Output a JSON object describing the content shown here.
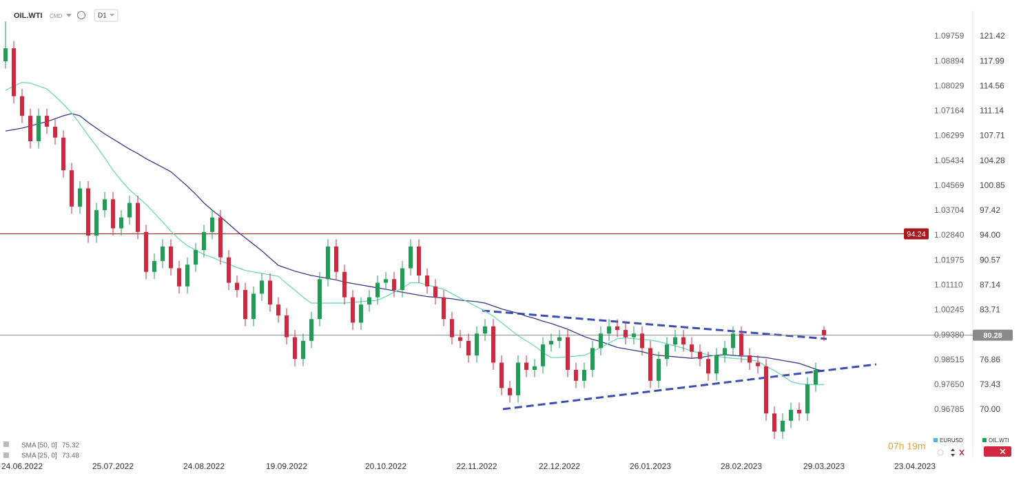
{
  "header": {
    "symbol": "OIL.WTI",
    "asset_class": "CMD",
    "timeframe": "D1"
  },
  "chart_data": {
    "type": "candlestick",
    "categories": [
      null,
      null,
      "24.06.2022",
      null,
      null,
      null,
      null,
      null,
      null,
      null,
      null,
      null,
      null,
      "25.07.2022",
      null,
      null,
      null,
      null,
      null,
      null,
      null,
      null,
      null,
      null,
      "24.08.2022",
      null,
      null,
      null,
      null,
      null,
      null,
      null,
      null,
      null,
      "19.09.2022",
      null,
      null,
      null,
      null,
      null,
      null,
      null,
      null,
      null,
      null,
      null,
      "20.10.2022",
      null,
      null,
      null,
      null,
      null,
      null,
      null,
      null,
      null,
      null,
      "22.11.2022",
      null,
      null,
      null,
      null,
      null,
      null,
      null,
      null,
      null,
      "22.12.2022",
      null,
      null,
      null,
      null,
      null,
      null,
      null,
      null,
      null,
      null,
      "26.01.2023",
      null,
      null,
      null,
      null,
      null,
      null,
      null,
      null,
      null,
      null,
      "28.02.2023",
      null,
      null,
      null,
      null,
      null,
      null,
      null,
      null,
      null,
      "29.03.2023",
      null,
      null,
      null,
      null,
      null,
      null,
      null,
      null,
      null,
      null,
      "23.04.2023"
    ],
    "open": [
      118.0,
      119.8,
      113.2,
      110.5,
      107.0,
      110.5,
      109.0,
      107.5,
      103.0,
      98.0,
      100.5,
      94.0,
      97.5,
      99.0,
      95.0,
      96.5,
      98.5,
      94.5,
      89.0,
      90.5,
      92.5,
      89.5,
      87.0,
      90.0,
      92.0,
      94.5,
      96.5,
      91.0,
      87.5,
      86.5,
      82.5,
      86.0,
      87.8,
      84.5,
      83.0,
      80.0,
      77.0,
      79.5,
      82.5,
      88.0,
      92.5,
      89.0,
      85.5,
      82.0,
      84.5,
      85.5,
      87.5,
      88.0,
      86.5,
      89.5,
      92.5,
      88.5,
      87.0,
      85.5,
      82.5,
      80.0,
      79.5,
      77.5,
      80.5,
      81.5,
      76.5,
      73.0,
      72.0,
      76.5,
      75.5,
      76.0,
      79.0,
      79.5,
      80.0,
      75.5,
      74.0,
      75.5,
      78.5,
      80.5,
      81.5,
      81.0,
      80.0,
      80.5,
      78.5,
      74.0,
      77.0,
      79.0,
      80.0,
      79.0,
      78.0,
      77.0,
      75.0,
      77.5,
      78.5,
      80.5,
      77.5,
      76.5,
      76.0,
      69.5,
      67.0,
      68.5,
      70.0,
      69.5,
      73.5,
      81.0,
      null,
      null,
      null,
      null,
      null,
      null,
      null,
      null,
      null,
      null,
      null
    ],
    "high": [
      123.5,
      120.8,
      114.2,
      111.5,
      111.5,
      111.5,
      110.0,
      108.5,
      104.0,
      101.5,
      101.5,
      98.5,
      100.0,
      100.0,
      97.5,
      99.5,
      99.5,
      95.5,
      91.5,
      93.5,
      93.5,
      90.5,
      91.0,
      93.0,
      95.5,
      97.5,
      97.5,
      92.0,
      88.5,
      87.5,
      87.0,
      88.8,
      88.8,
      85.5,
      84.0,
      81.0,
      80.5,
      83.5,
      89.0,
      93.5,
      93.5,
      90.0,
      86.5,
      85.5,
      86.5,
      88.5,
      89.0,
      89.0,
      90.5,
      93.5,
      93.5,
      89.5,
      88.0,
      86.5,
      83.5,
      81.0,
      80.5,
      81.5,
      82.5,
      82.5,
      77.5,
      74.0,
      77.5,
      77.5,
      77.0,
      80.0,
      80.5,
      81.0,
      81.0,
      76.5,
      76.5,
      79.5,
      81.5,
      82.5,
      82.5,
      82.0,
      81.5,
      81.5,
      79.5,
      78.0,
      80.0,
      81.0,
      81.0,
      80.0,
      79.0,
      78.0,
      78.5,
      79.5,
      81.5,
      81.5,
      78.5,
      77.5,
      77.0,
      70.5,
      69.5,
      71.0,
      71.0,
      74.5,
      76.5,
      81.5,
      null,
      null,
      null,
      null,
      null,
      null,
      null,
      null,
      null,
      null,
      null
    ],
    "low": [
      117.0,
      112.2,
      109.5,
      106.0,
      106.0,
      108.0,
      106.5,
      102.0,
      97.0,
      97.0,
      93.0,
      93.0,
      96.5,
      94.0,
      94.0,
      95.5,
      93.5,
      88.0,
      88.0,
      89.5,
      88.5,
      86.0,
      86.0,
      89.0,
      91.0,
      93.5,
      90.0,
      86.5,
      85.5,
      81.5,
      81.5,
      85.0,
      83.5,
      82.0,
      79.0,
      76.0,
      76.0,
      78.5,
      81.5,
      87.0,
      88.0,
      84.5,
      81.0,
      81.0,
      83.5,
      84.5,
      86.5,
      85.5,
      85.5,
      88.5,
      87.5,
      86.0,
      84.5,
      81.5,
      79.0,
      78.5,
      76.5,
      76.5,
      79.5,
      75.5,
      72.0,
      71.0,
      71.0,
      74.5,
      74.5,
      75.0,
      78.0,
      78.5,
      74.5,
      73.0,
      73.0,
      74.5,
      77.5,
      79.5,
      80.0,
      79.0,
      79.0,
      77.5,
      73.0,
      73.0,
      76.0,
      78.0,
      78.0,
      77.0,
      76.0,
      74.0,
      74.0,
      76.5,
      77.5,
      76.5,
      75.5,
      75.0,
      68.5,
      66.0,
      66.0,
      67.5,
      68.5,
      68.5,
      72.5,
      79.5,
      null,
      null,
      null,
      null,
      null,
      null,
      null,
      null,
      null,
      null,
      null
    ],
    "close": [
      119.8,
      113.2,
      110.5,
      107.0,
      110.5,
      109.0,
      107.5,
      103.0,
      98.0,
      100.5,
      94.0,
      97.5,
      99.0,
      95.0,
      96.5,
      98.5,
      94.5,
      89.0,
      90.5,
      92.5,
      89.5,
      87.0,
      90.0,
      92.0,
      94.5,
      96.5,
      91.0,
      87.5,
      86.5,
      82.5,
      86.0,
      87.8,
      84.5,
      83.0,
      80.0,
      77.0,
      79.5,
      82.5,
      88.0,
      92.5,
      89.0,
      85.5,
      82.0,
      84.5,
      85.5,
      87.5,
      88.0,
      86.5,
      89.5,
      92.5,
      88.5,
      87.0,
      85.5,
      82.5,
      80.0,
      79.5,
      77.5,
      80.5,
      81.5,
      76.5,
      73.0,
      72.0,
      76.5,
      75.5,
      76.0,
      79.0,
      79.5,
      80.0,
      75.5,
      74.0,
      75.5,
      78.5,
      80.5,
      81.5,
      81.0,
      80.0,
      80.5,
      78.5,
      74.0,
      77.0,
      79.0,
      80.0,
      79.0,
      78.0,
      77.0,
      75.0,
      77.5,
      78.5,
      80.5,
      77.5,
      76.5,
      76.0,
      69.5,
      67.0,
      68.5,
      70.0,
      69.5,
      73.5,
      75.5,
      80.28,
      null,
      null,
      null,
      null,
      null,
      null,
      null,
      null,
      null,
      null,
      null
    ],
    "up_color": "#1f9d55",
    "down_color": "#d0283f",
    "series": [
      {
        "name": "SMA [50, 0]",
        "last_value": 75.32,
        "color": "#343a8c",
        "values": [
          108.4,
          108.6,
          108.8,
          109.1,
          109.4,
          109.7,
          110.1,
          110.5,
          110.8,
          110.5,
          109.6,
          108.8,
          108.0,
          107.3,
          106.6,
          105.9,
          105.3,
          104.6,
          104.0,
          103.4,
          102.8,
          101.8,
          100.8,
          99.7,
          98.5,
          97.5,
          96.6,
          95.6,
          94.6,
          93.7,
          92.8,
          91.9,
          90.9,
          89.9,
          89.5,
          89.1,
          88.8,
          88.5,
          88.3,
          88.1,
          87.9,
          87.6,
          87.4,
          87.2,
          87.0,
          86.8,
          86.6,
          86.4,
          86.2,
          86.0,
          85.8,
          85.6,
          85.5,
          85.4,
          85.3,
          85.1,
          85.0,
          84.9,
          84.7,
          84.3,
          83.9,
          83.6,
          83.3,
          82.9,
          82.6,
          82.2,
          81.9,
          81.5,
          81.1,
          80.6,
          80.1,
          79.7,
          79.4,
          79.0,
          78.6,
          78.4,
          78.2,
          78.0,
          77.7,
          77.5,
          77.4,
          77.3,
          77.2,
          77.1,
          77.2,
          77.4,
          77.5,
          77.6,
          77.5,
          77.4,
          77.4,
          77.3,
          77.2,
          77.0,
          76.8,
          76.6,
          76.4,
          76.0,
          75.6,
          75.32,
          null,
          null,
          null,
          null,
          null,
          null,
          null,
          null,
          null,
          null,
          null
        ]
      },
      {
        "name": "SMA [25, 0]",
        "last_value": 73.48,
        "color": "#6fd6b4",
        "values": [
          114.0,
          114.6,
          115.1,
          115.0,
          114.6,
          114.2,
          113.2,
          112.1,
          110.9,
          109.4,
          107.8,
          106.3,
          104.7,
          103.0,
          101.6,
          100.3,
          99.3,
          98.3,
          97.1,
          95.9,
          94.6,
          93.5,
          92.6,
          92.0,
          91.4,
          91.0,
          90.5,
          90.1,
          89.6,
          89.2,
          89.0,
          88.8,
          88.6,
          88.4,
          87.4,
          86.5,
          85.5,
          84.7,
          84.7,
          84.7,
          84.7,
          84.7,
          84.8,
          84.9,
          85.0,
          85.1,
          85.6,
          86.2,
          86.8,
          87.5,
          87.5,
          87.2,
          86.9,
          86.6,
          86.0,
          85.4,
          84.8,
          84.2,
          83.6,
          82.9,
          82.0,
          81.1,
          80.2,
          79.5,
          78.8,
          77.9,
          77.2,
          77.2,
          77.3,
          77.4,
          77.5,
          78.0,
          78.6,
          79.2,
          79.8,
          79.9,
          79.8,
          79.7,
          79.6,
          79.4,
          79.1,
          78.8,
          78.5,
          78.1,
          77.8,
          77.6,
          77.4,
          77.2,
          77.1,
          77.0,
          76.9,
          76.7,
          76.0,
          75.4,
          74.7,
          73.9,
          73.6,
          73.5,
          73.45,
          73.48,
          null,
          null,
          null,
          null,
          null,
          null,
          null,
          null,
          null,
          null,
          null
        ]
      }
    ],
    "ylim": [
      63.36,
      126.45
    ],
    "yticks": [
      121.42,
      117.99,
      114.56,
      111.14,
      107.71,
      104.28,
      100.85,
      97.42,
      {
        "value": 94,
        "label": "94.00"
      },
      90.57,
      87.14,
      83.71,
      76.86,
      73.43,
      {
        "value": 70,
        "label": "70.00"
      }
    ],
    "y2lim": [
      0.95109,
      1.11028
    ],
    "y2ticks": [
      1.09759,
      1.08894,
      1.08029,
      1.07164,
      1.06299,
      1.05434,
      1.04569,
      1.03704,
      {
        "value": 1.0284,
        "label": "1.02840"
      },
      1.01975,
      {
        "value": 1.0111,
        "label": "1.01110"
      },
      1.00245,
      {
        "value": 0.9938,
        "label": "0.99380"
      },
      0.98515,
      {
        "value": 0.9765,
        "label": "0.97650"
      },
      0.96785
    ],
    "levels": [
      {
        "value": 94.24,
        "color": "#a8171b"
      },
      {
        "value": 80.28,
        "color": "#8a8a8a"
      }
    ]
  },
  "footer": {
    "countdown": "07h 19m",
    "symbols": [
      "EURUSD",
      "OIL.WTI"
    ]
  }
}
